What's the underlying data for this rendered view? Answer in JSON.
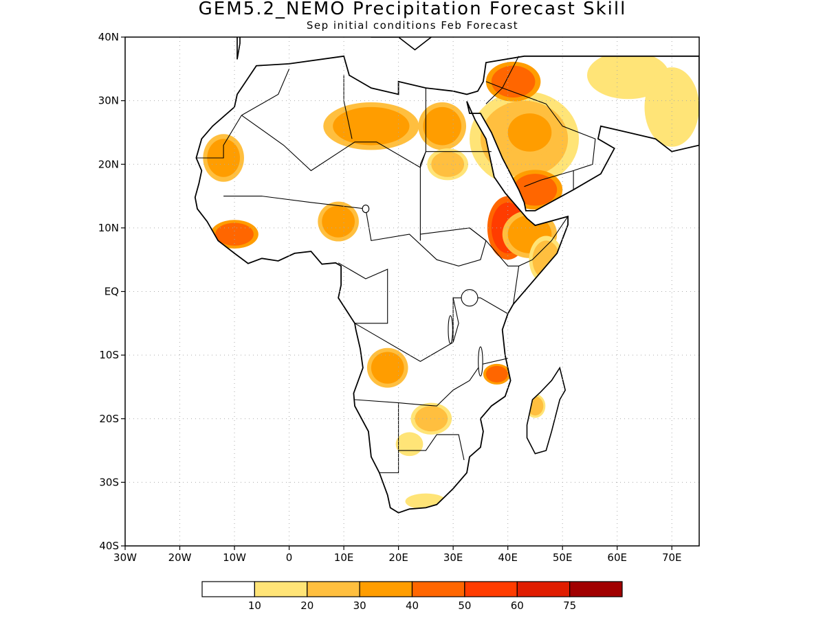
{
  "title": "GEM5.2_NEMO Precipitation Forecast Skill",
  "subtitle": "Sep initial conditions  Feb Forecast",
  "map": {
    "lon_range": [
      -30,
      75
    ],
    "lat_range": [
      -40,
      40
    ],
    "lat_ticks": [
      {
        "lat": 40,
        "label": "40N"
      },
      {
        "lat": 30,
        "label": "30N"
      },
      {
        "lat": 20,
        "label": "20N"
      },
      {
        "lat": 10,
        "label": "10N"
      },
      {
        "lat": 0,
        "label": "EQ"
      },
      {
        "lat": -10,
        "label": "10S"
      },
      {
        "lat": -20,
        "label": "20S"
      },
      {
        "lat": -30,
        "label": "30S"
      },
      {
        "lat": -40,
        "label": "40S"
      }
    ],
    "lon_ticks": [
      {
        "lon": -30,
        "label": "30W"
      },
      {
        "lon": -20,
        "label": "20W"
      },
      {
        "lon": -10,
        "label": "10W"
      },
      {
        "lon": 0,
        "label": "0"
      },
      {
        "lon": 10,
        "label": "10E"
      },
      {
        "lon": 20,
        "label": "20E"
      },
      {
        "lon": 30,
        "label": "30E"
      },
      {
        "lon": 40,
        "label": "40E"
      },
      {
        "lon": 50,
        "label": "50E"
      },
      {
        "lon": 60,
        "label": "60E"
      },
      {
        "lon": 70,
        "label": "70E"
      }
    ],
    "grid": true,
    "coastline_color": "#000000"
  },
  "skill_regions": [
    {
      "name": "Arabian Peninsula",
      "lon": 43,
      "lat": 24,
      "rlon": 8,
      "rlat": 6,
      "level": 2
    },
    {
      "name": "Arabian Peninsula core",
      "lon": 44,
      "lat": 25,
      "rlon": 4,
      "rlat": 3,
      "level": 3
    },
    {
      "name": "Yemen",
      "lon": 45,
      "lat": 16,
      "rlon": 4,
      "rlat": 2.5,
      "level": 4
    },
    {
      "name": "Jordan-Iraq",
      "lon": 41,
      "lat": 33,
      "rlon": 4,
      "rlat": 2.5,
      "level": 4
    },
    {
      "name": "Ethiopia-Eritrea",
      "lon": 40,
      "lat": 10,
      "rlon": 3,
      "rlat": 4,
      "level": 5
    },
    {
      "name": "Horn of Africa",
      "lon": 44,
      "lat": 9,
      "rlon": 4,
      "rlat": 3,
      "level": 3
    },
    {
      "name": "Somalia",
      "lon": 47,
      "lat": 5,
      "rlon": 2.5,
      "rlat": 3,
      "level": 2
    },
    {
      "name": "Libya-Algeria",
      "lon": 15,
      "lat": 26,
      "rlon": 7,
      "rlat": 3,
      "level": 3
    },
    {
      "name": "Egypt West",
      "lon": 28,
      "lat": 26,
      "rlon": 3.5,
      "rlat": 3,
      "level": 3
    },
    {
      "name": "Mauritania",
      "lon": -12,
      "lat": 21,
      "rlon": 3,
      "rlat": 3,
      "level": 3
    },
    {
      "name": "Guinea-Sierra Leone",
      "lon": -10,
      "lat": 9,
      "rlon": 3.5,
      "rlat": 1.8,
      "level": 4
    },
    {
      "name": "Nigeria-Cameroon",
      "lon": 9,
      "lat": 11,
      "rlon": 3,
      "rlat": 2.5,
      "level": 3
    },
    {
      "name": "Sudan",
      "lon": 29,
      "lat": 20,
      "rlon": 3,
      "rlat": 2,
      "level": 2
    },
    {
      "name": "Angola",
      "lon": 18,
      "lat": -12,
      "rlon": 3,
      "rlat": 2.5,
      "level": 3
    },
    {
      "name": "Mozambique",
      "lon": 38,
      "lat": -13,
      "rlon": 2,
      "rlat": 1.3,
      "level": 4
    },
    {
      "name": "Botswana-Zimbabwe",
      "lon": 26,
      "lat": -20,
      "rlon": 3,
      "rlat": 2,
      "level": 2
    },
    {
      "name": "Madagascar",
      "lon": 45,
      "lat": -18,
      "rlon": 1.5,
      "rlat": 1.5,
      "level": 2
    },
    {
      "name": "Iran",
      "lon": 62,
      "lat": 34,
      "rlon": 6,
      "rlat": 3,
      "level": 1
    },
    {
      "name": "India West",
      "lon": 70,
      "lat": 29,
      "rlon": 4,
      "rlat": 5,
      "level": 1
    },
    {
      "name": "Namibia",
      "lon": 22,
      "lat": -24,
      "rlon": 2,
      "rlat": 1.5,
      "level": 1
    },
    {
      "name": "South Africa",
      "lon": 25,
      "lat": -33,
      "rlon": 3,
      "rlat": 1,
      "level": 1
    }
  ],
  "colorbar": {
    "colors": [
      "#ffffff",
      "#ffe477",
      "#ffbf3f",
      "#ff9d00",
      "#ff6600",
      "#ff3c00",
      "#e01d00",
      "#a10000"
    ],
    "labels": [
      "10",
      "20",
      "30",
      "40",
      "50",
      "60",
      "75"
    ]
  }
}
